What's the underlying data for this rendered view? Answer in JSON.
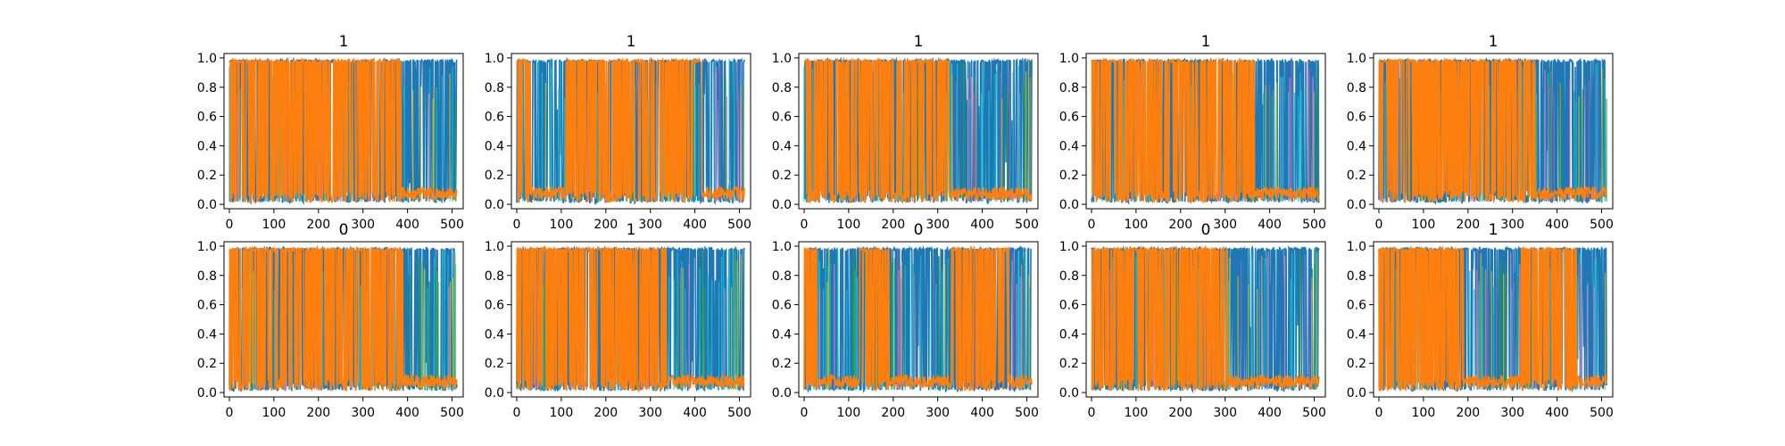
{
  "chart_data": {
    "type": "line",
    "layout": "2x5 grid of subplots",
    "xlim": [
      -12,
      525
    ],
    "ylim": [
      -0.03,
      1.03
    ],
    "x_ticks": [
      0,
      100,
      200,
      300,
      400,
      500
    ],
    "y_ticks": [
      0.0,
      0.2,
      0.4,
      0.6,
      0.8,
      1.0
    ],
    "x_tick_labels": [
      "0",
      "100",
      "200",
      "300",
      "400",
      "500"
    ],
    "y_tick_labels": [
      "0.0",
      "0.2",
      "0.4",
      "0.6",
      "0.8",
      "1.0"
    ],
    "n_points": 512,
    "grid": false,
    "legend": "none",
    "colors": {
      "blue": "#1f77b4",
      "orange": "#ff7f0e",
      "cyan": "#17becf",
      "olive": "#bcbd22",
      "green": "#2ca02c",
      "pink": "#e377c2",
      "purple": "#9467bd"
    },
    "panels": [
      {
        "title": "1",
        "orange_segments": [
          [
            0,
            385
          ]
        ]
      },
      {
        "title": "1",
        "orange_segments": [
          [
            0,
            30
          ],
          [
            110,
            420
          ]
        ]
      },
      {
        "title": "1",
        "orange_segments": [
          [
            0,
            330
          ]
        ]
      },
      {
        "title": "1",
        "orange_segments": [
          [
            0,
            365
          ]
        ]
      },
      {
        "title": "1",
        "orange_segments": [
          [
            0,
            350
          ]
        ]
      },
      {
        "title": "0",
        "orange_segments": [
          [
            0,
            390
          ]
        ]
      },
      {
        "title": "1",
        "orange_segments": [
          [
            0,
            335
          ]
        ]
      },
      {
        "title": "0",
        "orange_segments": [
          [
            0,
            30
          ],
          [
            125,
            190
          ],
          [
            325,
            460
          ]
        ]
      },
      {
        "title": "0",
        "orange_segments": [
          [
            0,
            305
          ]
        ]
      },
      {
        "title": "1",
        "orange_segments": [
          [
            0,
            190
          ],
          [
            320,
            445
          ]
        ]
      }
    ]
  }
}
